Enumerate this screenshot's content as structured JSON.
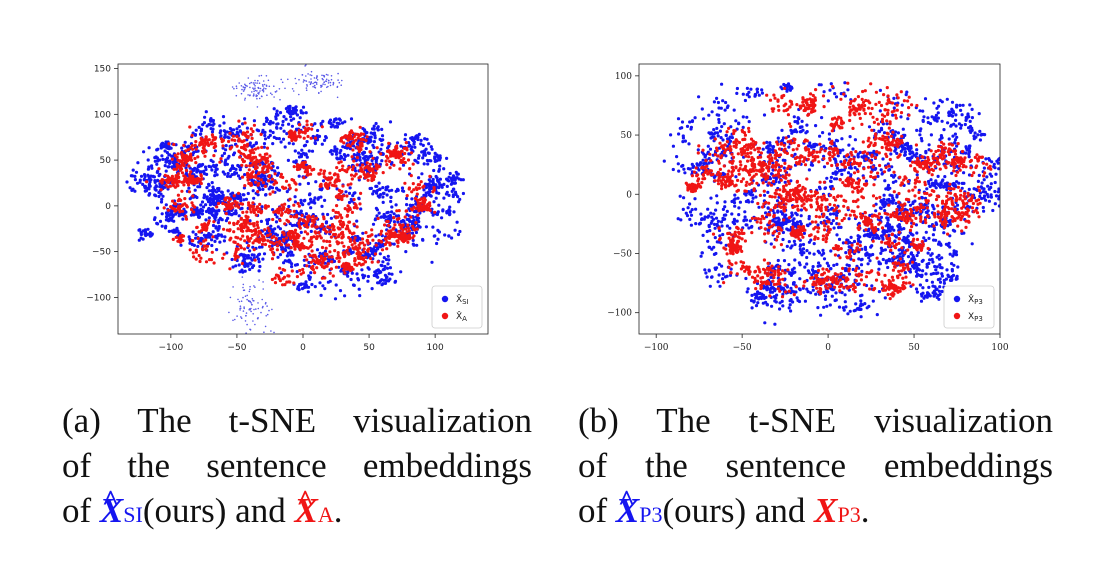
{
  "panels": [
    {
      "id": "a",
      "caption": {
        "line1": "(a) The t-SNE visualization",
        "line2": "of the sentence embeddings",
        "line3_prefix": "of ",
        "sym1": "X",
        "sym1_sub": "SI",
        "mid": "(ours) and ",
        "sym2": "X",
        "sym2_sub": "A",
        "end": ".",
        "sym1_hat": true,
        "sym2_hat": true
      }
    },
    {
      "id": "b",
      "caption": {
        "line1": "(b) The t-SNE visualization",
        "line2": "of the sentence embeddings",
        "line3_prefix": "of ",
        "sym1": "X",
        "sym1_sub": "P3",
        "mid": "(ours) and ",
        "sym2": "X",
        "sym2_sub": "P3",
        "end": ".",
        "sym1_hat": true,
        "sym2_hat": false
      }
    }
  ],
  "chart_data": [
    {
      "type": "scatter",
      "title": "",
      "xlabel": "",
      "ylabel": "",
      "xlim": [
        -140,
        140
      ],
      "ylim": [
        -140,
        155
      ],
      "xticks": [
        -100,
        -50,
        0,
        50,
        100
      ],
      "xtick_labels": [
        "−100",
        "−50",
        "0",
        "50",
        "100"
      ],
      "yticks": [
        -100,
        -50,
        0,
        50,
        100,
        150
      ],
      "ytick_labels": [
        "−100",
        "−50",
        "0",
        "50",
        "100",
        "150"
      ],
      "grid": false,
      "legend_position": "bottom-right",
      "series": [
        {
          "name": "X̂SI",
          "label_main": "X̂",
          "label_sub": "SI",
          "color": "#1515f0"
        },
        {
          "name": "X̂A",
          "label_main": "X̂",
          "label_sub": "A",
          "color": "#f01515"
        }
      ],
      "cloud": {
        "center": [
          -5,
          5
        ],
        "radius": [
          125,
          100
        ],
        "n_blue": 2200,
        "n_red": 1700,
        "extra_clusters": [
          [
            -35,
            128,
            8,
            6
          ],
          [
            12,
            136,
            10,
            6
          ],
          [
            -38,
            -110,
            8,
            15
          ]
        ]
      }
    },
    {
      "type": "scatter",
      "title": "",
      "xlabel": "",
      "ylabel": "",
      "xlim": [
        -110,
        100
      ],
      "ylim": [
        -118,
        110
      ],
      "xticks": [
        -100,
        -50,
        0,
        50,
        100
      ],
      "xtick_labels": [
        "−100",
        "−50",
        "0",
        "50",
        "100"
      ],
      "yticks": [
        -100,
        -50,
        0,
        50,
        100
      ],
      "ytick_labels": [
        "−100",
        "−50",
        "0",
        "50",
        "100"
      ],
      "grid": false,
      "legend_position": "bottom-right",
      "series": [
        {
          "name": "X̂P3",
          "label_main": "X̂",
          "label_sub": "P3",
          "color": "#1515f0"
        },
        {
          "name": "XP3",
          "label_main": "X",
          "label_sub": "P3",
          "color": "#f01515"
        }
      ],
      "cloud": {
        "center": [
          5,
          0
        ],
        "radius": [
          100,
          102
        ],
        "n_blue": 2100,
        "n_red": 2000,
        "extra_clusters": []
      }
    }
  ]
}
